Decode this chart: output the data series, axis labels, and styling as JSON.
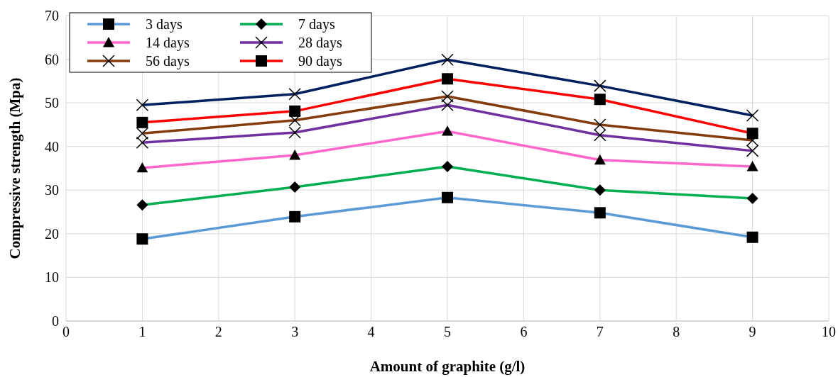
{
  "chart_data": {
    "type": "line",
    "xlabel": "Amount of graphite (g/l)",
    "ylabel": "Compressive strength (Mpa)",
    "x": [
      1,
      3,
      5,
      7,
      9
    ],
    "xlim": [
      0,
      10
    ],
    "xticks": [
      0,
      1,
      2,
      3,
      4,
      5,
      6,
      7,
      8,
      9,
      10
    ],
    "ylim": [
      0,
      70
    ],
    "yticks": [
      0,
      10,
      20,
      30,
      40,
      50,
      60,
      70
    ],
    "grid": true,
    "legend": "top left",
    "line_style": "solid",
    "series": [
      {
        "name": "3 days",
        "color": "#5b9bd5",
        "marker": "square",
        "values": [
          18.8,
          23.9,
          28.3,
          24.8,
          19.2
        ]
      },
      {
        "name": "7 days",
        "color": "#00b050",
        "marker": "diamond",
        "values": [
          26.6,
          30.7,
          35.4,
          30.0,
          28.1
        ]
      },
      {
        "name": "14 days",
        "color": "#ff66cc",
        "marker": "triangle",
        "values": [
          35.1,
          38.0,
          43.5,
          36.9,
          35.4
        ]
      },
      {
        "name": "28 days",
        "color": "#7030a0",
        "marker": "cross",
        "values": [
          40.9,
          43.2,
          49.5,
          42.6,
          39.0
        ]
      },
      {
        "name": "56 days",
        "color": "#843c0c",
        "marker": "cross",
        "values": [
          43.0,
          46.0,
          51.5,
          45.0,
          41.4
        ]
      },
      {
        "name": "90 days",
        "color": "#ff0000",
        "marker": "square",
        "values": [
          45.5,
          48.1,
          55.5,
          50.8,
          43.0
        ]
      },
      {
        "color": "#002060",
        "marker": "cross",
        "values": [
          49.5,
          52.0,
          59.9,
          53.9,
          47.1
        ]
      }
    ]
  }
}
